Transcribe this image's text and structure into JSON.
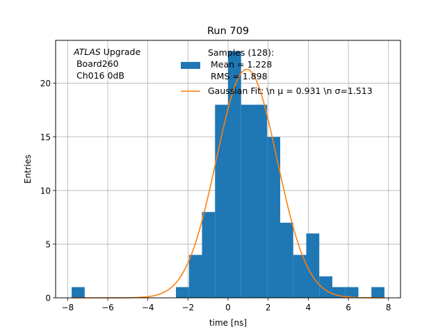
{
  "chart_data": {
    "type": "histogram",
    "title": "Run 709",
    "xlabel": "time [ns]",
    "ylabel": "Entries",
    "xlim": [
      -8.6,
      8.6
    ],
    "ylim": [
      0,
      24
    ],
    "x_ticks": [
      -8,
      -6,
      -4,
      -2,
      0,
      2,
      4,
      6,
      8
    ],
    "y_ticks": [
      0,
      5,
      10,
      15,
      20
    ],
    "grid": true,
    "bin_width": 0.65,
    "bins": [
      {
        "x0": -7.8,
        "x1": -7.15,
        "count": 1
      },
      {
        "x0": -2.6,
        "x1": -1.95,
        "count": 1
      },
      {
        "x0": -1.95,
        "x1": -1.3,
        "count": 4
      },
      {
        "x0": -1.3,
        "x1": -0.65,
        "count": 8
      },
      {
        "x0": -0.65,
        "x1": 0.0,
        "count": 18
      },
      {
        "x0": 0.0,
        "x1": 0.65,
        "count": 23
      },
      {
        "x0": 0.65,
        "x1": 1.3,
        "count": 18
      },
      {
        "x0": 1.3,
        "x1": 1.95,
        "count": 18
      },
      {
        "x0": 1.95,
        "x1": 2.6,
        "count": 15
      },
      {
        "x0": 2.6,
        "x1": 3.25,
        "count": 7
      },
      {
        "x0": 3.25,
        "x1": 3.9,
        "count": 4
      },
      {
        "x0": 3.9,
        "x1": 4.55,
        "count": 6
      },
      {
        "x0": 4.55,
        "x1": 5.2,
        "count": 2
      },
      {
        "x0": 5.2,
        "x1": 5.85,
        "count": 1
      },
      {
        "x0": 5.85,
        "x1": 6.5,
        "count": 1
      },
      {
        "x0": 7.15,
        "x1": 7.8,
        "count": 1
      }
    ],
    "fit": {
      "type": "gaussian",
      "mu": 0.931,
      "sigma": 1.513,
      "amplitude": 21.3
    },
    "series_colors": {
      "histogram": "#1f77b4",
      "fit": "#ff7f0e"
    },
    "legend": {
      "placement": "upper-center",
      "entries": [
        {
          "lines": [
            "Samples (128):",
            " Mean = 1.228",
            " RMS = 1.898"
          ],
          "kind": "patch"
        },
        {
          "lines": [
            "Gaussian Fit: \\n μ = 0.931 \\n σ=1.513"
          ],
          "kind": "line"
        }
      ]
    },
    "annotation": {
      "italic": "ATLAS",
      "rest": " Upgrade",
      "line2": " Board260",
      "line3": " Ch016 0dB"
    }
  }
}
